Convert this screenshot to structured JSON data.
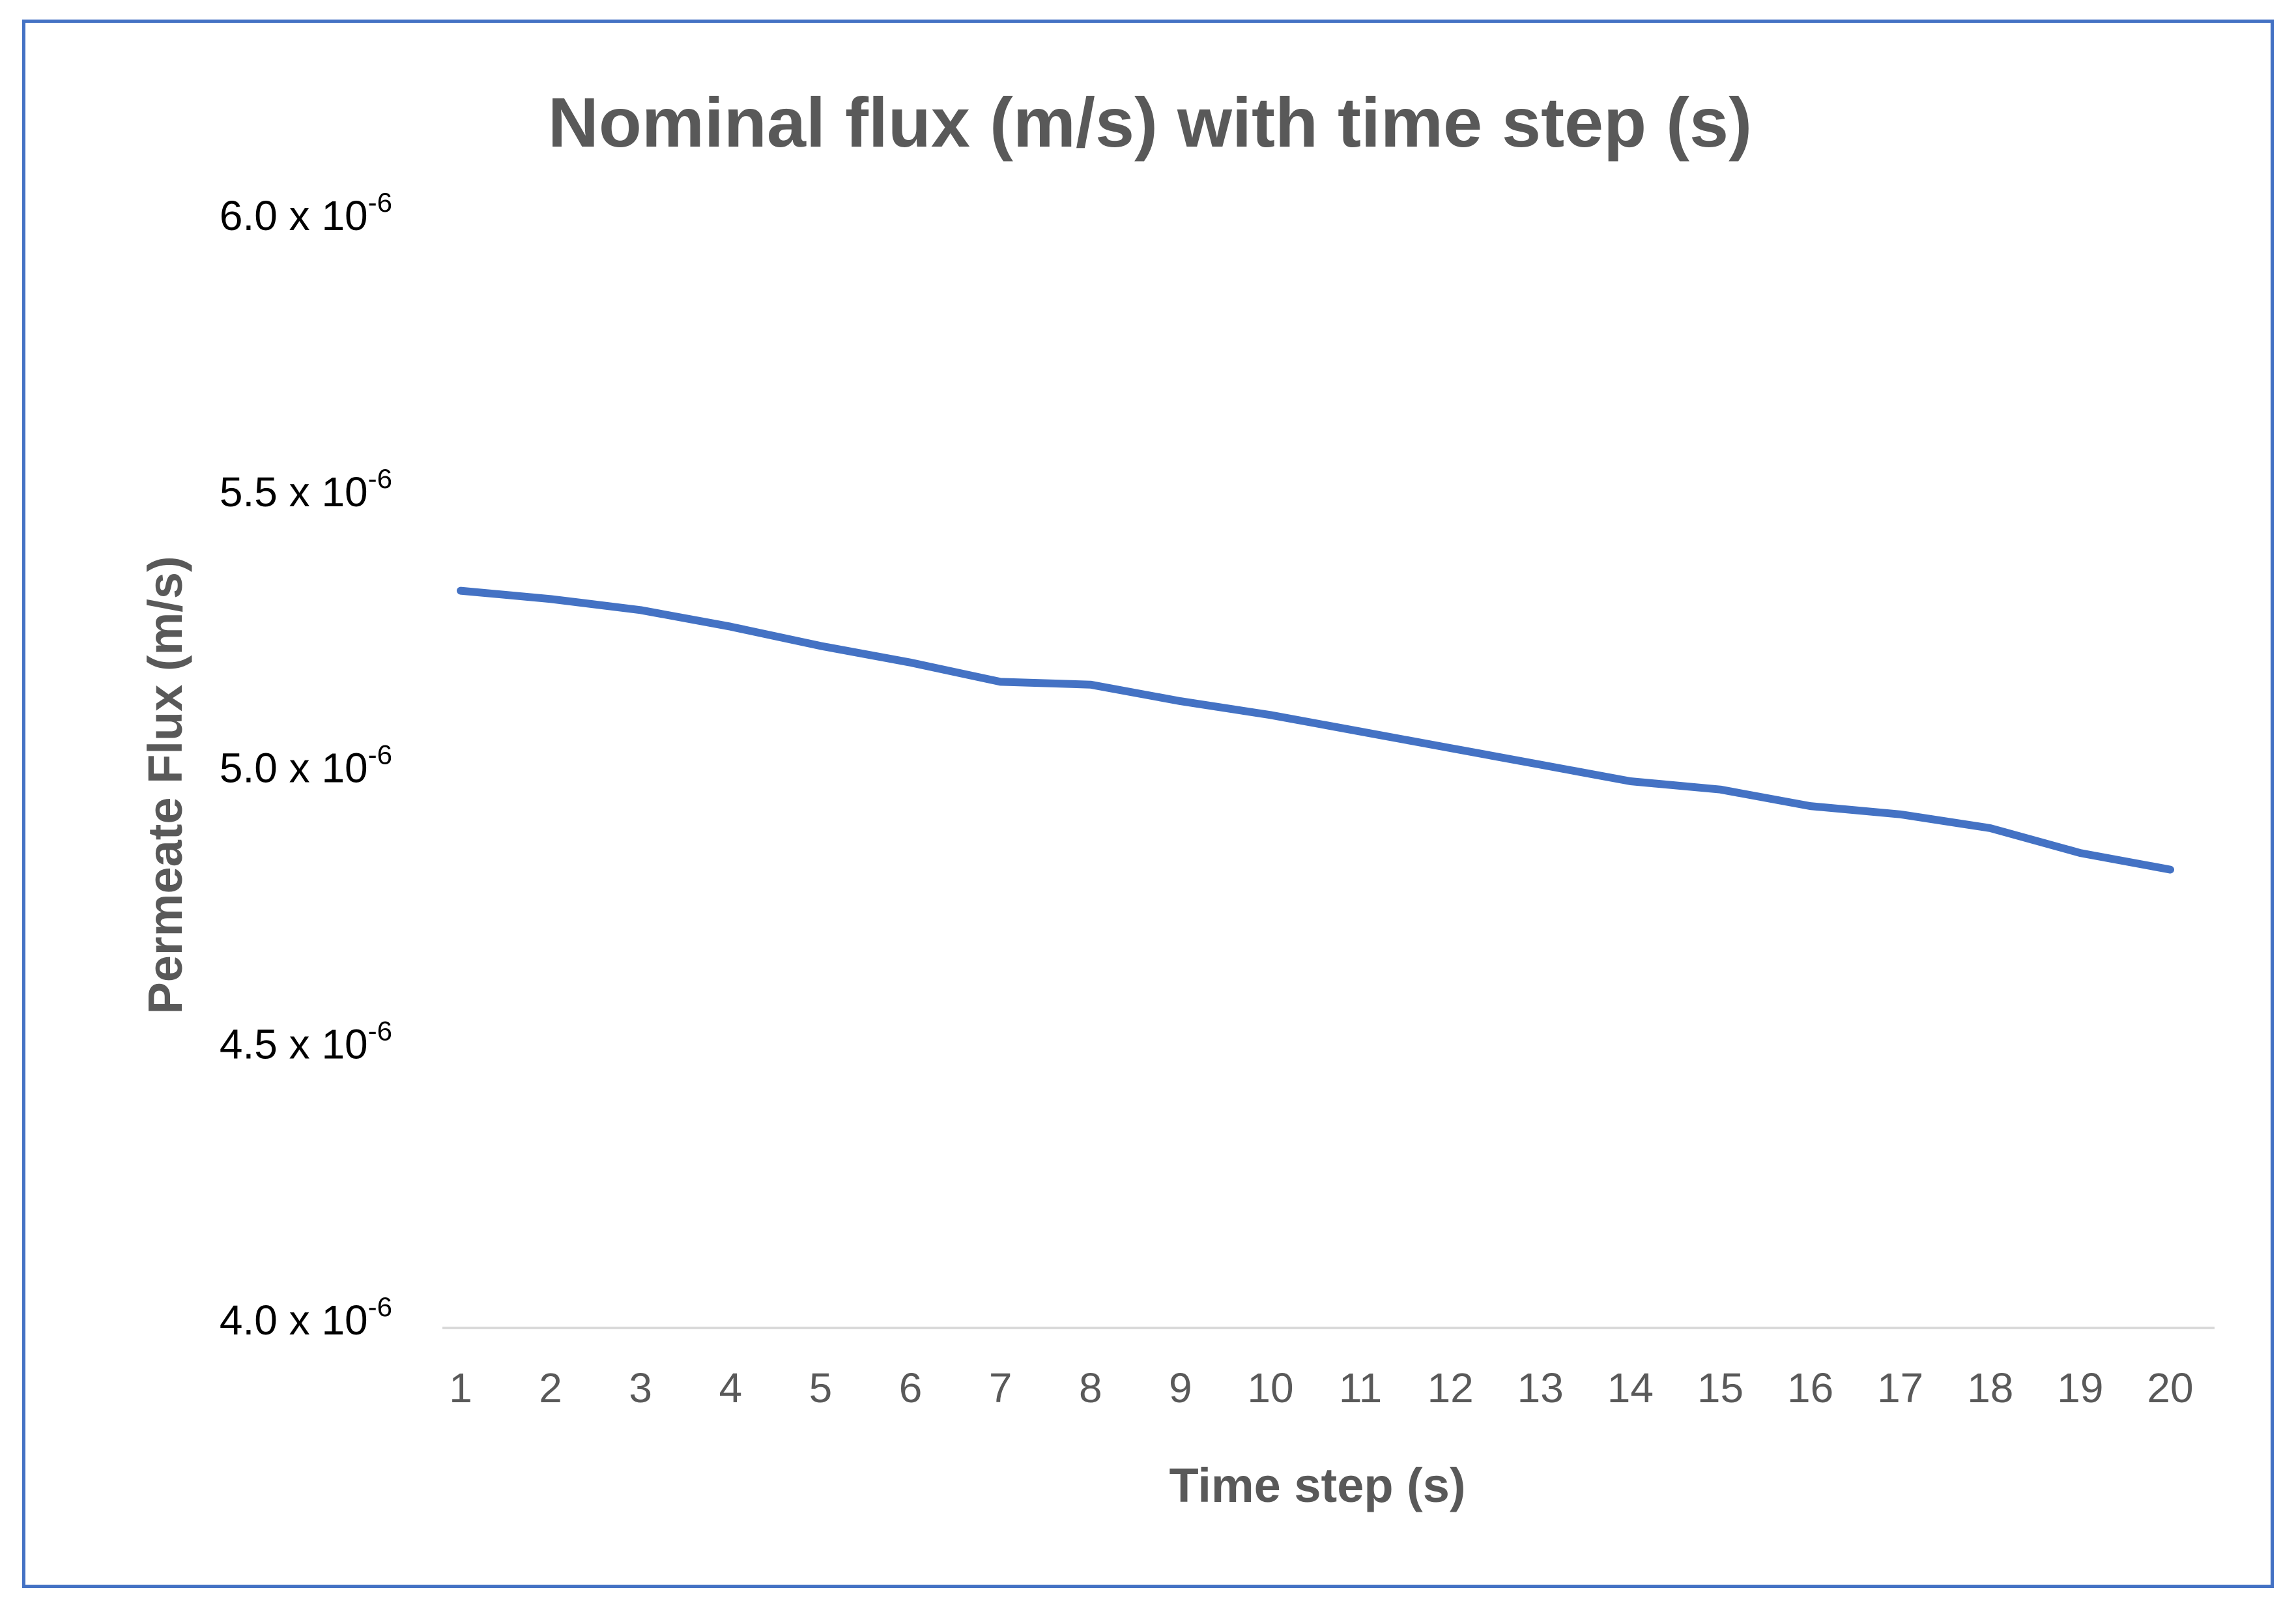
{
  "chart_data": {
    "type": "line",
    "title": "Nominal flux (m/s) with time step (s)",
    "xlabel": "Time step (s)",
    "ylabel": "Permeate Flux (m/s)",
    "x": [
      1,
      2,
      3,
      4,
      5,
      6,
      7,
      8,
      9,
      10,
      11,
      12,
      13,
      14,
      15,
      16,
      17,
      18,
      19,
      20
    ],
    "ylim": [
      4e-06,
      6e-06
    ],
    "y_ticks": [
      {
        "value": 6e-06,
        "base": "6.0 x 10",
        "exp": "-6"
      },
      {
        "value": 5.5e-06,
        "base": "5.5 x 10",
        "exp": "-6"
      },
      {
        "value": 5e-06,
        "base": "5.0 x 10",
        "exp": "-6"
      },
      {
        "value": 4.5e-06,
        "base": "4.5 x 10",
        "exp": "-6"
      },
      {
        "value": 4e-06,
        "base": "4.0 x 10",
        "exp": "-6"
      }
    ],
    "series": [
      {
        "color": "#4472c4",
        "values": [
          5.335e-06,
          5.32e-06,
          5.3e-06,
          5.27e-06,
          5.235e-06,
          5.205e-06,
          5.17e-06,
          5.165e-06,
          5.135e-06,
          5.11e-06,
          5.08e-06,
          5.05e-06,
          5.02e-06,
          4.99e-06,
          4.975e-06,
          4.945e-06,
          4.93e-06,
          4.905e-06,
          4.86e-06,
          4.83e-06
        ]
      }
    ],
    "grid": false,
    "frame_color": "#4472c4"
  }
}
